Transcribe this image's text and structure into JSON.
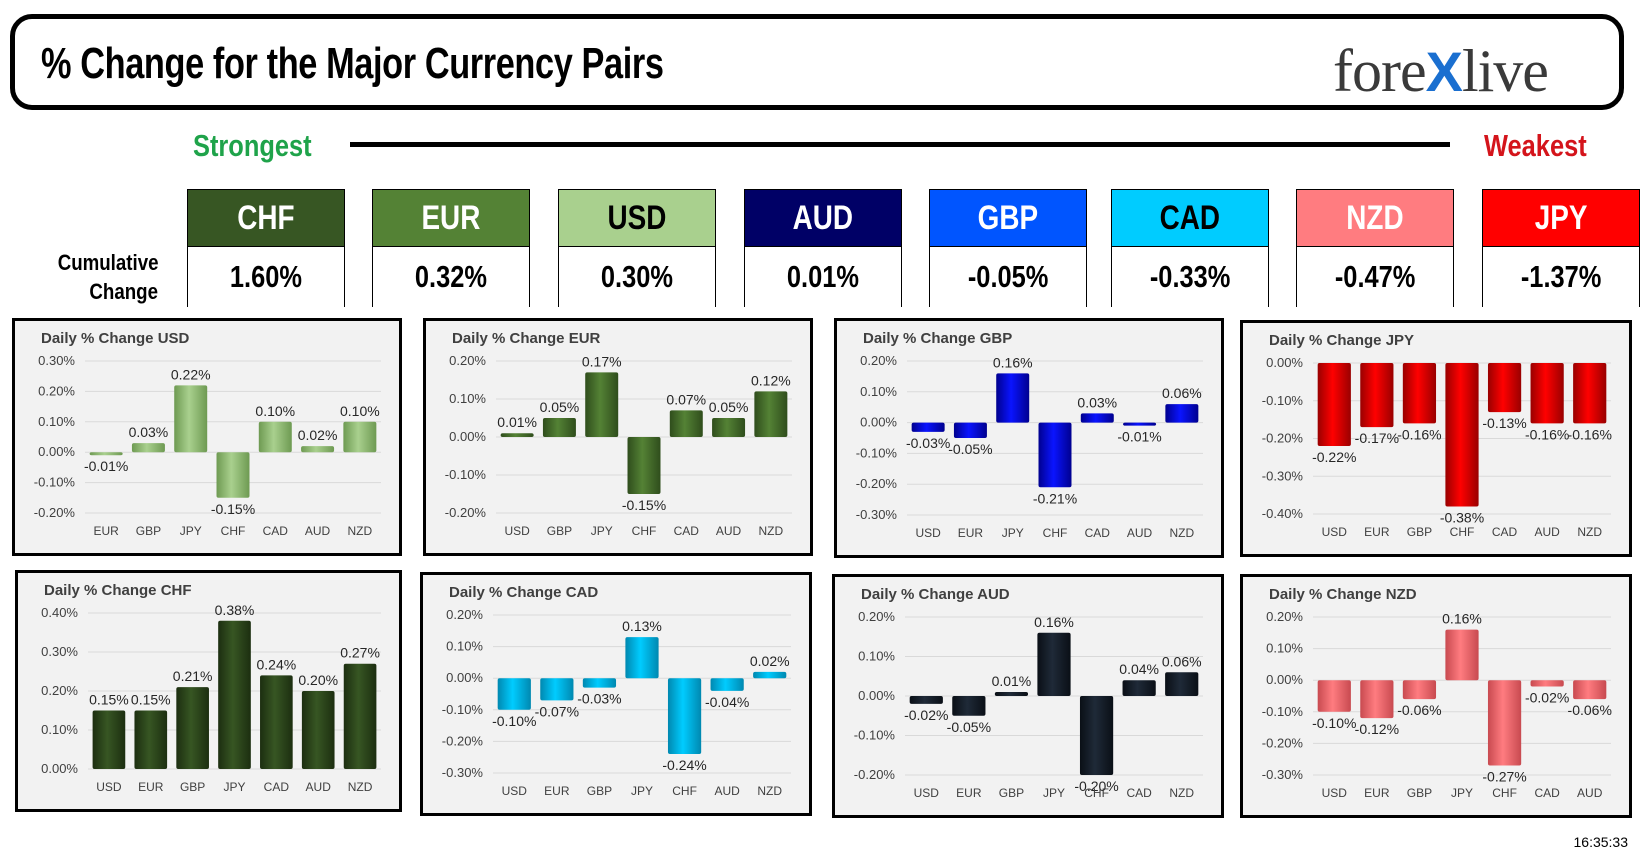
{
  "header": {
    "title": "% Change for the Major Currency Pairs",
    "logo_left": "fore",
    "logo_x": "X",
    "logo_right": "live",
    "strongest": "Strongest",
    "weakest": "Weakest",
    "cumulative_line1": "Cumulative",
    "cumulative_line2": "Change"
  },
  "cumulative": [
    {
      "currency": "CHF",
      "value": "1.60%",
      "color": "#375623",
      "text_color": "#ffffff"
    },
    {
      "currency": "EUR",
      "value": "0.32%",
      "color": "#548235",
      "text_color": "#ffffff"
    },
    {
      "currency": "USD",
      "value": "0.30%",
      "color": "#a9d08e",
      "text_color": "#000000"
    },
    {
      "currency": "AUD",
      "value": "0.01%",
      "color": "#000066",
      "text_color": "#ffffff"
    },
    {
      "currency": "GBP",
      "value": "-0.05%",
      "color": "#0055ff",
      "text_color": "#ffffff"
    },
    {
      "currency": "CAD",
      "value": "-0.33%",
      "color": "#00ccff",
      "text_color": "#000000"
    },
    {
      "currency": "NZD",
      "value": "-0.47%",
      "color": "#ff7c80",
      "text_color": "#ffffff"
    },
    {
      "currency": "JPY",
      "value": "-1.37%",
      "color": "#ff0000",
      "text_color": "#ffffff"
    }
  ],
  "timestamp": "16:35:33",
  "chart_data": [
    {
      "type": "bar",
      "title": "Daily % Change USD",
      "categories": [
        "EUR",
        "GBP",
        "JPY",
        "CHF",
        "CAD",
        "AUD",
        "NZD"
      ],
      "values": [
        -0.01,
        0.03,
        0.22,
        -0.15,
        0.1,
        0.02,
        0.1
      ],
      "labels": [
        "-0.01%",
        "0.03%",
        "0.22%",
        "-0.15%",
        "0.10%",
        "0.02%",
        "0.10%"
      ],
      "yticks": [
        0.3,
        0.2,
        0.1,
        0.0,
        -0.1,
        -0.2
      ],
      "ylim": [
        -0.2,
        0.3
      ],
      "color": "#a9d08e",
      "dark": "#6e9a52"
    },
    {
      "type": "bar",
      "title": "Daily % Change EUR",
      "categories": [
        "USD",
        "GBP",
        "JPY",
        "CHF",
        "CAD",
        "AUD",
        "NZD"
      ],
      "values": [
        0.01,
        0.05,
        0.17,
        -0.15,
        0.07,
        0.05,
        0.12
      ],
      "labels": [
        "0.01%",
        "0.05%",
        "0.17%",
        "-0.15%",
        "0.07%",
        "0.05%",
        "0.12%"
      ],
      "yticks": [
        0.2,
        0.1,
        0.0,
        -0.1,
        -0.2
      ],
      "ylim": [
        -0.2,
        0.2
      ],
      "color": "#548235",
      "dark": "#2f4d1c"
    },
    {
      "type": "bar",
      "title": "Daily % Change GBP",
      "categories": [
        "USD",
        "EUR",
        "JPY",
        "CHF",
        "CAD",
        "AUD",
        "NZD"
      ],
      "values": [
        -0.03,
        -0.05,
        0.16,
        -0.21,
        0.03,
        -0.01,
        0.06
      ],
      "labels": [
        "-0.03%",
        "-0.05%",
        "0.16%",
        "-0.21%",
        "0.03%",
        "-0.01%",
        "0.06%"
      ],
      "yticks": [
        0.2,
        0.1,
        0.0,
        -0.1,
        -0.2,
        -0.3
      ],
      "ylim": [
        -0.3,
        0.2
      ],
      "color": "#0a14ff",
      "dark": "#00008f"
    },
    {
      "type": "bar",
      "title": "Daily % Change JPY",
      "categories": [
        "USD",
        "EUR",
        "GBP",
        "CHF",
        "CAD",
        "AUD",
        "NZD"
      ],
      "values": [
        -0.22,
        -0.17,
        -0.16,
        -0.38,
        -0.13,
        -0.16,
        -0.16
      ],
      "labels": [
        "-0.22%",
        "-0.17%",
        "-0.16%",
        "-0.38%",
        "-0.13%",
        "-0.16%",
        "-0.16%"
      ],
      "yticks": [
        0.0,
        -0.1,
        -0.2,
        -0.3,
        -0.4
      ],
      "ylim": [
        -0.4,
        0.0
      ],
      "color": "#ff0000",
      "dark": "#990000"
    },
    {
      "type": "bar",
      "title": "Daily % Change CHF",
      "categories": [
        "USD",
        "EUR",
        "GBP",
        "JPY",
        "CAD",
        "AUD",
        "NZD"
      ],
      "values": [
        0.15,
        0.15,
        0.21,
        0.38,
        0.24,
        0.2,
        0.27
      ],
      "labels": [
        "0.15%",
        "0.15%",
        "0.21%",
        "0.38%",
        "0.24%",
        "0.20%",
        "0.27%"
      ],
      "yticks": [
        0.4,
        0.3,
        0.2,
        0.1,
        0.0
      ],
      "ylim": [
        0.0,
        0.4
      ],
      "color": "#375623",
      "dark": "#1c2e10"
    },
    {
      "type": "bar",
      "title": "Daily % Change CAD",
      "categories": [
        "USD",
        "EUR",
        "GBP",
        "JPY",
        "CHF",
        "AUD",
        "NZD"
      ],
      "values": [
        -0.1,
        -0.07,
        -0.03,
        0.13,
        -0.24,
        -0.04,
        0.02
      ],
      "labels": [
        "-0.10%",
        "-0.07%",
        "-0.03%",
        "0.13%",
        "-0.24%",
        "-0.04%",
        "0.02%"
      ],
      "yticks": [
        0.2,
        0.1,
        0.0,
        -0.1,
        -0.2,
        -0.3
      ],
      "ylim": [
        -0.3,
        0.2
      ],
      "color": "#00ccff",
      "dark": "#0088b0"
    },
    {
      "type": "bar",
      "title": "Daily % Change AUD",
      "categories": [
        "USD",
        "EUR",
        "GBP",
        "JPY",
        "CHF",
        "CAD",
        "NZD"
      ],
      "values": [
        -0.02,
        -0.05,
        0.01,
        0.16,
        -0.2,
        0.04,
        0.06
      ],
      "labels": [
        "-0.02%",
        "-0.05%",
        "0.01%",
        "0.16%",
        "-0.20%",
        "0.04%",
        "0.06%"
      ],
      "yticks": [
        0.2,
        0.1,
        0.0,
        -0.1,
        -0.2
      ],
      "ylim": [
        -0.2,
        0.2
      ],
      "color": "#1f2a38",
      "dark": "#0a0f16"
    },
    {
      "type": "bar",
      "title": "Daily % Change NZD",
      "categories": [
        "USD",
        "EUR",
        "GBP",
        "JPY",
        "CHF",
        "CAD",
        "AUD"
      ],
      "values": [
        -0.1,
        -0.12,
        -0.06,
        0.16,
        -0.27,
        -0.02,
        -0.06
      ],
      "labels": [
        "-0.10%",
        "-0.12%",
        "-0.06%",
        "0.16%",
        "-0.27%",
        "-0.02%",
        "-0.06%"
      ],
      "yticks": [
        0.2,
        0.1,
        0.0,
        -0.1,
        -0.2,
        -0.3
      ],
      "ylim": [
        -0.3,
        0.2
      ],
      "color": "#ff7c80",
      "dark": "#c84a50"
    }
  ]
}
